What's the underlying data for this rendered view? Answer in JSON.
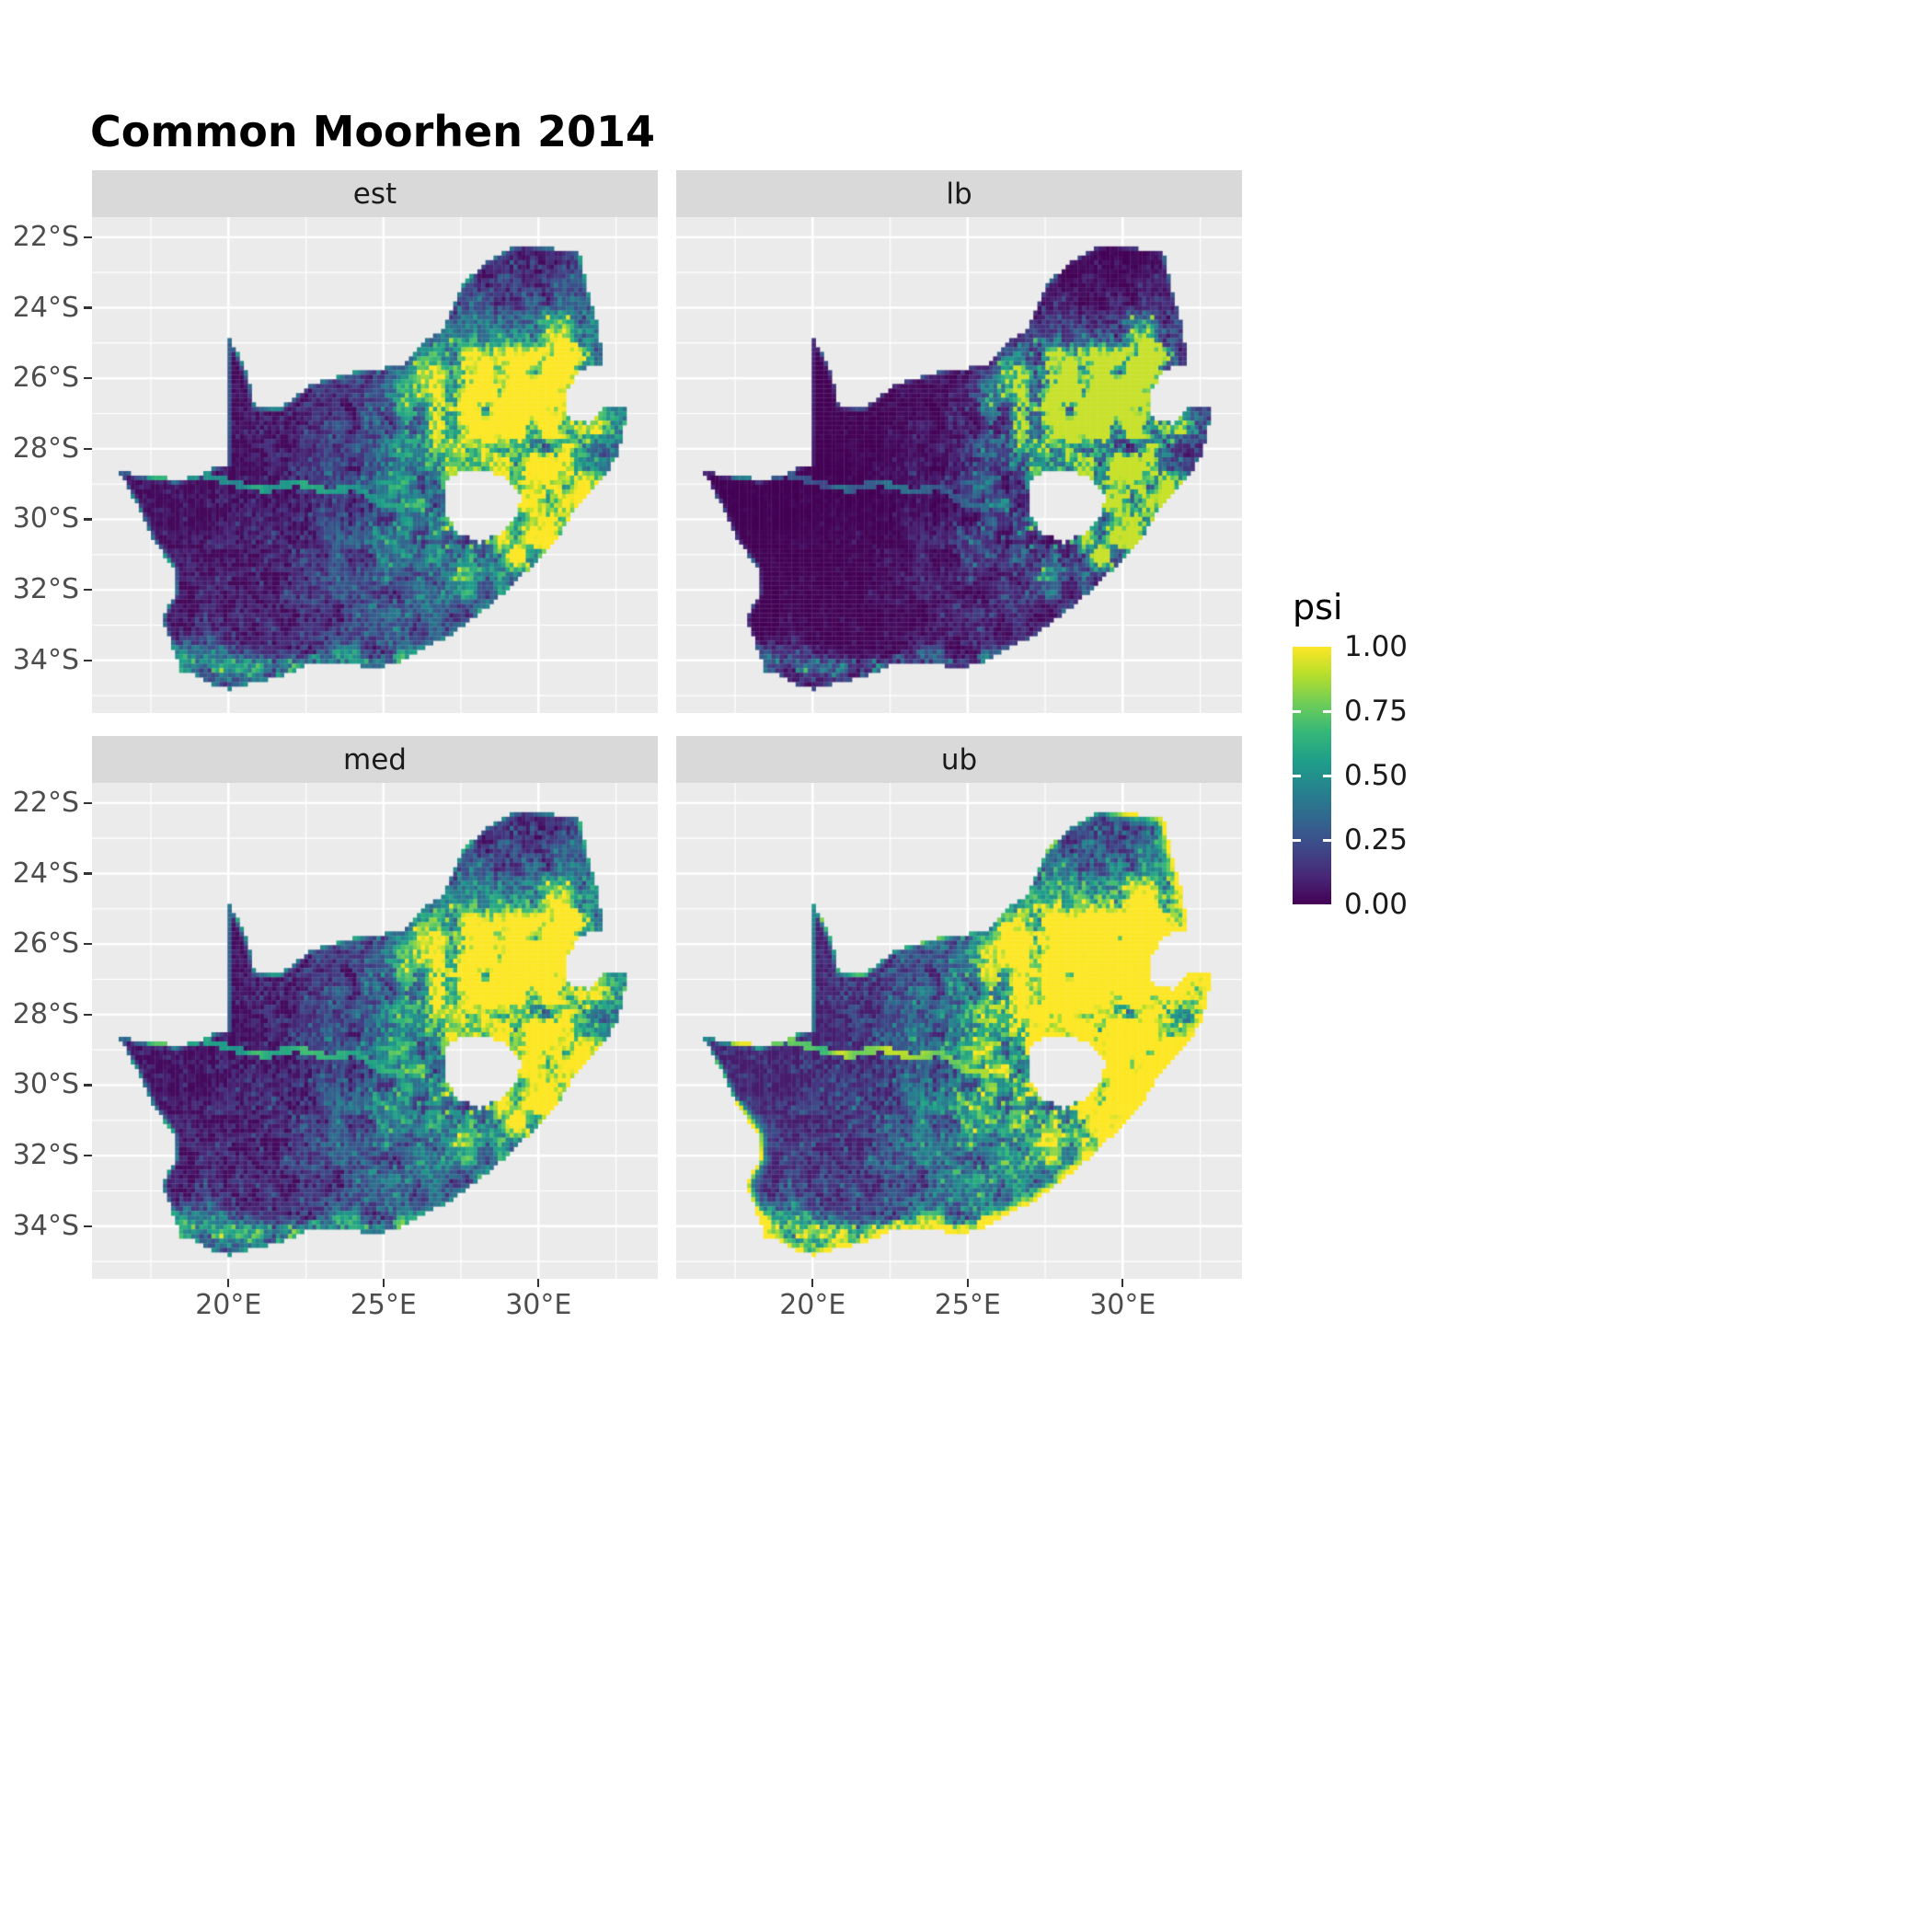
{
  "title": "Common Moorhen 2014",
  "chart_data": {
    "type": "heatmap",
    "subtype": "faceted_raster_map",
    "title": "Common Moorhen 2014",
    "region": "South Africa",
    "facets": [
      "est",
      "lb",
      "med",
      "ub"
    ],
    "value_name": "psi",
    "value_range": [
      0,
      1
    ],
    "legend": {
      "title": "psi",
      "position": "right",
      "ticks": [
        "1.00",
        "0.75",
        "0.50",
        "0.25",
        "0.00"
      ],
      "tick_values": [
        1,
        0.75,
        0.5,
        0.25,
        0
      ]
    },
    "x_axis": {
      "ticks": [
        "20°E",
        "25°E",
        "30°E"
      ],
      "tick_values": [
        20,
        25,
        30
      ],
      "range": [
        15.6,
        33.85
      ]
    },
    "y_axis": {
      "ticks": [
        "22°S",
        "24°S",
        "26°S",
        "28°S",
        "30°S",
        "32°S",
        "34°S"
      ],
      "tick_values": [
        -22,
        -24,
        -26,
        -28,
        -30,
        -32,
        -34
      ],
      "range": [
        -35.5,
        -21.4
      ]
    },
    "grid": "on",
    "colormap": "viridis",
    "colormap_stops": [
      "#440154",
      "#482878",
      "#3e4989",
      "#31688e",
      "#26828e",
      "#1f9e89",
      "#35b779",
      "#6dcd59",
      "#b4de2c",
      "#fde725"
    ],
    "map_outline": [
      [
        16.45,
        -28.6
      ],
      [
        17.1,
        -28.78
      ],
      [
        17.75,
        -28.74
      ],
      [
        18.25,
        -28.9
      ],
      [
        19.0,
        -28.78
      ],
      [
        19.6,
        -28.52
      ],
      [
        19.98,
        -28.45
      ],
      [
        19.98,
        -24.77
      ],
      [
        20.35,
        -25.35
      ],
      [
        20.65,
        -26.05
      ],
      [
        20.85,
        -26.8
      ],
      [
        21.7,
        -26.85
      ],
      [
        22.6,
        -26.2
      ],
      [
        23.9,
        -25.85
      ],
      [
        25.0,
        -25.72
      ],
      [
        25.6,
        -25.6
      ],
      [
        26.4,
        -24.9
      ],
      [
        26.9,
        -24.65
      ],
      [
        27.5,
        -23.4
      ],
      [
        28.3,
        -22.68
      ],
      [
        29.4,
        -22.2
      ],
      [
        30.3,
        -22.3
      ],
      [
        31.3,
        -22.4
      ],
      [
        31.6,
        -23.6
      ],
      [
        31.95,
        -24.5
      ],
      [
        32.05,
        -25.6
      ],
      [
        31.4,
        -25.72
      ],
      [
        30.9,
        -26.35
      ],
      [
        30.95,
        -27.1
      ],
      [
        31.65,
        -27.3
      ],
      [
        32.15,
        -26.85
      ],
      [
        32.9,
        -26.85
      ],
      [
        32.55,
        -28.2
      ],
      [
        32.1,
        -28.8
      ],
      [
        31.3,
        -29.55
      ],
      [
        30.7,
        -30.4
      ],
      [
        29.9,
        -31.2
      ],
      [
        29.2,
        -31.85
      ],
      [
        28.2,
        -32.6
      ],
      [
        27.1,
        -33.3
      ],
      [
        26.0,
        -33.8
      ],
      [
        25.65,
        -34.0
      ],
      [
        24.8,
        -34.2
      ],
      [
        23.6,
        -34.1
      ],
      [
        22.5,
        -34.15
      ],
      [
        21.8,
        -34.42
      ],
      [
        20.5,
        -34.7
      ],
      [
        20.0,
        -34.83
      ],
      [
        19.3,
        -34.62
      ],
      [
        18.85,
        -34.4
      ],
      [
        18.42,
        -34.32
      ],
      [
        18.33,
        -33.9
      ],
      [
        17.85,
        -32.8
      ],
      [
        18.3,
        -32.1
      ],
      [
        18.25,
        -31.4
      ],
      [
        17.6,
        -30.6
      ],
      [
        17.05,
        -29.6
      ]
    ],
    "lesotho_hole": [
      [
        27.0,
        -28.9
      ],
      [
        27.55,
        -28.62
      ],
      [
        28.35,
        -28.6
      ],
      [
        29.1,
        -28.92
      ],
      [
        29.45,
        -29.3
      ],
      [
        29.3,
        -29.9
      ],
      [
        28.8,
        -30.4
      ],
      [
        28.1,
        -30.65
      ],
      [
        27.35,
        -30.35
      ],
      [
        26.95,
        -29.7
      ]
    ],
    "river_path": [
      [
        16.9,
        -28.65
      ],
      [
        18.0,
        -28.85
      ],
      [
        19.2,
        -28.72
      ],
      [
        20.2,
        -29.0
      ],
      [
        21.2,
        -29.15
      ],
      [
        22.2,
        -28.95
      ],
      [
        23.2,
        -29.2
      ],
      [
        24.1,
        -29.1
      ],
      [
        24.9,
        -29.55
      ],
      [
        25.65,
        -29.68
      ]
    ]
  },
  "colors": {
    "panel_bg": "#ebebeb",
    "strip_bg": "#d9d9d9",
    "grid": "#ffffff",
    "axis_text": "#4d4d4d",
    "strip_text": "#1a1a1a",
    "tick": "#333333"
  }
}
